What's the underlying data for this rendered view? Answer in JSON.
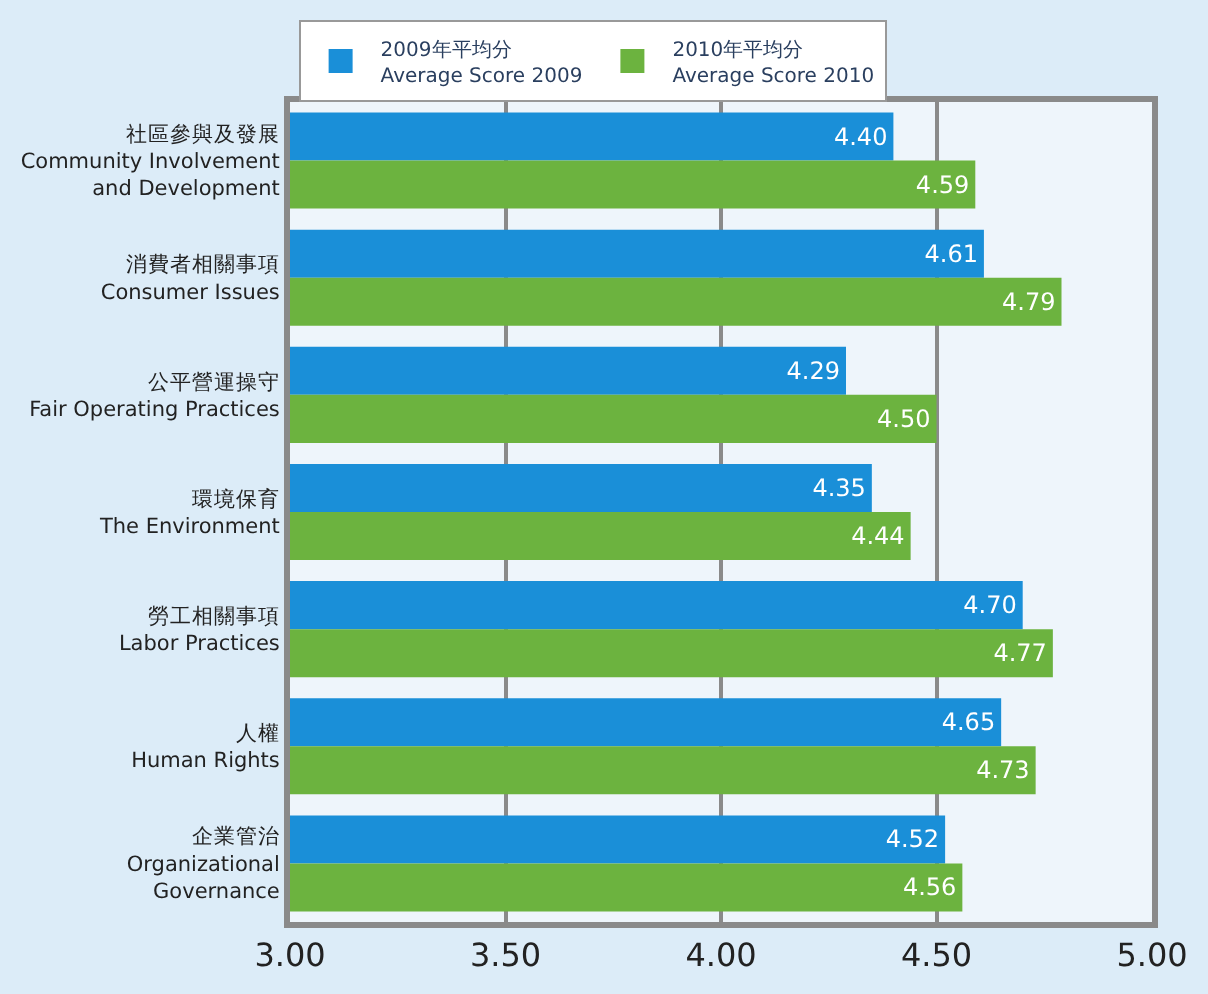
{
  "chart_data": {
    "type": "bar",
    "orientation": "horizontal",
    "categories": [
      "社區參與及發展\nCommunity Involvement\nand Development",
      "消費者相關事項\nConsumer Issues",
      "公平營運操守\nFair Operating Practices",
      "環境保育\nThe Environment",
      "勞工相關事項\nLabor Practices",
      "人權\nHuman Rights",
      "企業管治\nOrganizational\nGovernance"
    ],
    "series": [
      {
        "name": "2009年平均分\nAverage Score 2009",
        "color": "#1a8fd8",
        "values": [
          4.4,
          4.61,
          4.29,
          4.35,
          4.7,
          4.65,
          4.52
        ],
        "value_labels": [
          "4.40",
          "4.61",
          "4.29",
          "4.35",
          "4.70",
          "4.65",
          "4.52"
        ]
      },
      {
        "name": "2010年平均分\nAverage Score 2010",
        "color": "#6cb33f",
        "values": [
          4.59,
          4.79,
          4.5,
          4.44,
          4.77,
          4.73,
          4.56
        ],
        "value_labels": [
          "4.59",
          "4.79",
          "4.50",
          "4.44",
          "4.77",
          "4.73",
          "4.56"
        ]
      }
    ],
    "xlim": [
      3.0,
      5.0
    ],
    "xticks": [
      {
        "value": 3.0,
        "label": "3.00"
      },
      {
        "value": 3.5,
        "label": "3.50"
      },
      {
        "value": 4.0,
        "label": "4.00"
      },
      {
        "value": 4.5,
        "label": "4.50"
      },
      {
        "value": 5.0,
        "label": "5.00"
      }
    ],
    "grid": "x",
    "legend": "top"
  }
}
